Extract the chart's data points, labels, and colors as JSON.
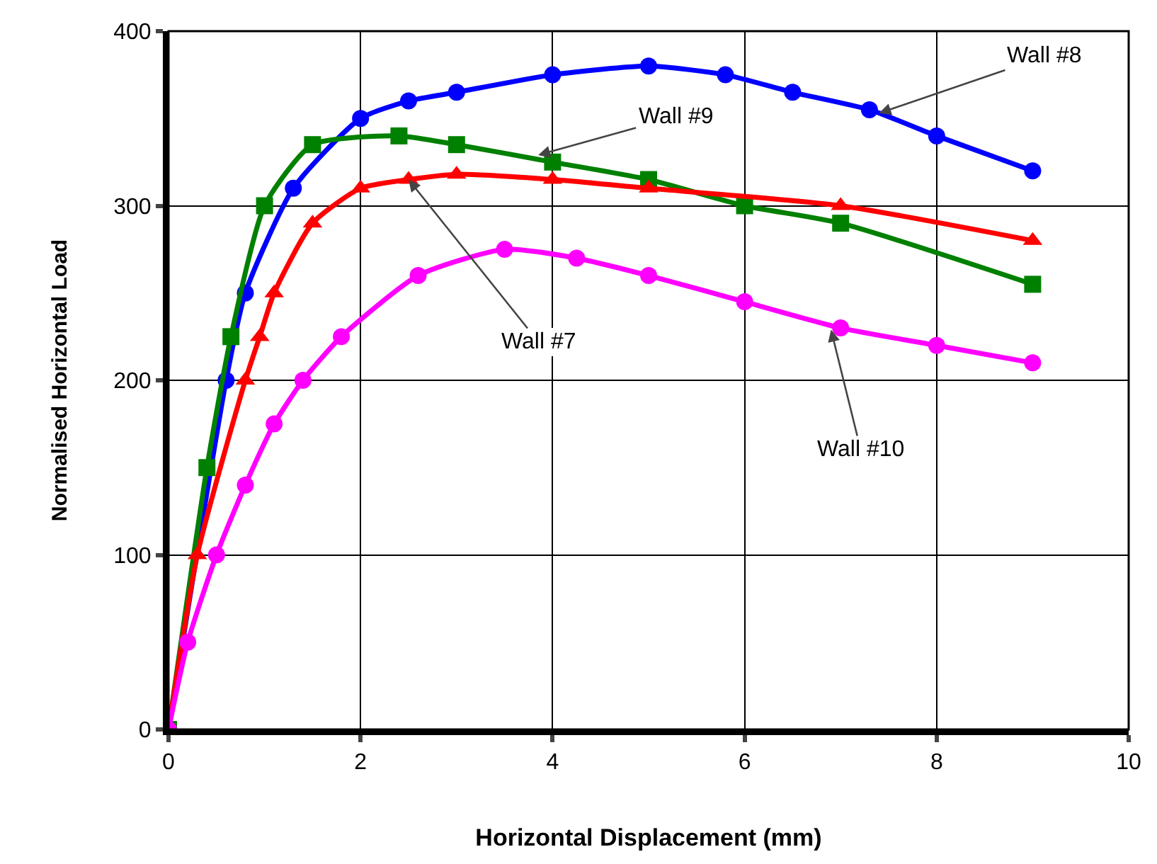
{
  "chart_data": {
    "type": "line",
    "xlabel": "Horizontal Displacement (mm)",
    "ylabel": "Normalised Horizontal Load",
    "xlim": [
      0,
      10
    ],
    "xticks": [
      0,
      2,
      4,
      6,
      8,
      10
    ],
    "ylim": [
      0,
      400
    ],
    "yticks": [
      0,
      100,
      200,
      300,
      400
    ],
    "grid": true,
    "line_style": "solid",
    "series": [
      {
        "color": "#0000ff",
        "marker": "circle",
        "x": [
          0,
          0.6,
          0.8,
          1.3,
          2,
          2.5,
          3,
          4,
          5,
          5.8,
          6.5,
          7.3,
          8,
          9
        ],
        "values": [
          0,
          200,
          250,
          310,
          350,
          360,
          365,
          375,
          380,
          375,
          365,
          355,
          340,
          320
        ]
      },
      {
        "color": "#008000",
        "marker": "square",
        "x": [
          0,
          0.4,
          0.65,
          1,
          1.5,
          2.4,
          3,
          4,
          5,
          6,
          7,
          9
        ],
        "values": [
          0,
          150,
          225,
          300,
          335,
          340,
          335,
          325,
          315,
          300,
          290,
          255
        ]
      },
      {
        "color": "#ff0000",
        "marker": "triangle",
        "x": [
          0,
          0.3,
          0.8,
          0.95,
          1.1,
          1.5,
          2,
          2.5,
          3,
          4,
          5,
          7,
          9
        ],
        "values": [
          0,
          100,
          200,
          225,
          250,
          290,
          310,
          315,
          318,
          315,
          310,
          300,
          280
        ]
      },
      {
        "color": "#ff00ff",
        "marker": "circle",
        "x": [
          0,
          0.2,
          0.5,
          0.8,
          1.1,
          1.4,
          1.8,
          2.6,
          3.5,
          4.25,
          5,
          6,
          7,
          8,
          9
        ],
        "values": [
          0,
          50,
          100,
          140,
          175,
          200,
          225,
          260,
          275,
          270,
          260,
          245,
          230,
          220,
          210
        ]
      }
    ],
    "annotations": [
      {
        "text": "Wall #8",
        "x": 7.4,
        "y": 353
      },
      {
        "text": "Wall #9",
        "x": 3.85,
        "y": 329
      },
      {
        "text": "Wall #7",
        "x": 2.5,
        "y": 315
      },
      {
        "text": "Wall #10",
        "x": 6.9,
        "y": 229
      }
    ]
  }
}
